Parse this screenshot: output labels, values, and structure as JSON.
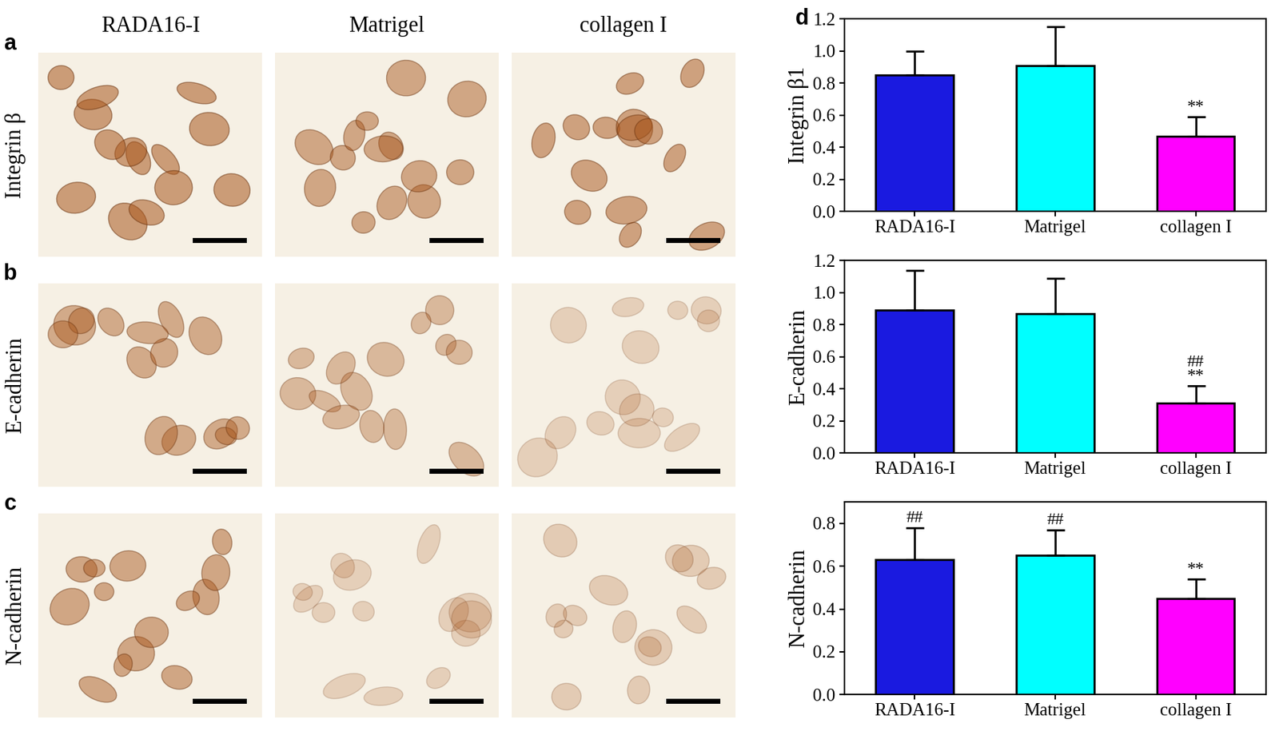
{
  "image_panels": {
    "columns": [
      "RADA16-I",
      "Matrigel",
      "collagen I"
    ],
    "rows": [
      {
        "panel_label": "a",
        "label": "Integrin β"
      },
      {
        "panel_label": "b",
        "label": "E-cadherin"
      },
      {
        "panel_label": "c",
        "label": "N-cadherin"
      }
    ]
  },
  "chart_panel_label": "d",
  "chart_data": [
    {
      "type": "bar",
      "ylabel": "Integrin β1",
      "categories": [
        "RADA16-I",
        "Matrigel",
        "collagen I"
      ],
      "values": [
        0.85,
        0.91,
        0.47
      ],
      "errors": [
        0.15,
        0.24,
        0.12
      ],
      "colors": [
        "#1a1ae0",
        "#00ffff",
        "#ff00ff"
      ],
      "ylim": [
        0,
        1.2
      ],
      "yticks": [
        {
          "value": 0,
          "label": "0.0"
        },
        {
          "value": 0.2,
          "label": "0.2"
        },
        {
          "value": 0.4,
          "label": "0.4"
        },
        {
          "value": 0.6,
          "label": "0.6"
        },
        {
          "value": 0.8,
          "label": "0.8"
        },
        {
          "value": 1.0,
          "label": "1.0"
        },
        {
          "value": 1.2,
          "label": "1.2"
        }
      ],
      "annotations": [
        {
          "category": "collagen I",
          "text": "**"
        }
      ]
    },
    {
      "type": "bar",
      "ylabel": "E-cadherin",
      "categories": [
        "RADA16-I",
        "Matrigel",
        "collagen I"
      ],
      "values": [
        0.89,
        0.87,
        0.31
      ],
      "errors": [
        0.25,
        0.22,
        0.11
      ],
      "colors": [
        "#1a1ae0",
        "#00ffff",
        "#ff00ff"
      ],
      "ylim": [
        0,
        1.2
      ],
      "yticks": [
        {
          "value": 0,
          "label": "0.0"
        },
        {
          "value": 0.2,
          "label": "0.2"
        },
        {
          "value": 0.4,
          "label": "0.4"
        },
        {
          "value": 0.6,
          "label": "0.6"
        },
        {
          "value": 0.8,
          "label": "0.8"
        },
        {
          "value": 1.0,
          "label": "1.0"
        },
        {
          "value": 1.2,
          "label": "1.2"
        }
      ],
      "annotations": [
        {
          "category": "collagen I",
          "text": "##\n**"
        }
      ]
    },
    {
      "type": "bar",
      "ylabel": "N-cadherin",
      "categories": [
        "RADA16-I",
        "Matrigel",
        "collagen I"
      ],
      "values": [
        0.63,
        0.65,
        0.45
      ],
      "errors": [
        0.15,
        0.12,
        0.09
      ],
      "colors": [
        "#1a1ae0",
        "#00ffff",
        "#ff00ff"
      ],
      "ylim": [
        0,
        0.9
      ],
      "yticks": [
        {
          "value": 0,
          "label": "0.0"
        },
        {
          "value": 0.2,
          "label": "0.2"
        },
        {
          "value": 0.4,
          "label": "0.4"
        },
        {
          "value": 0.6,
          "label": "0.6"
        },
        {
          "value": 0.8,
          "label": "0.8"
        }
      ],
      "annotations": [
        {
          "category": "RADA16-I",
          "text": "##"
        },
        {
          "category": "Matrigel",
          "text": "##"
        },
        {
          "category": "collagen I",
          "text": "**"
        }
      ]
    }
  ]
}
